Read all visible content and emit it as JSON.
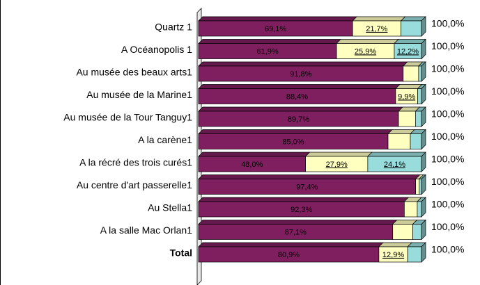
{
  "chart_data": {
    "type": "stacked-bar-3d",
    "categories": [
      "Quartz 1",
      "A Océanopolis 1",
      "Au musée des beaux arts1",
      "Au musée de la Marine1",
      "Au musée de la Tour Tanguy1",
      "A la carène1",
      "A la récré des trois curés1",
      "Au centre d'art passerelle1",
      "Au Stella1",
      "A la salle Mac Orlan1",
      "Total"
    ],
    "xlim": [
      0,
      100
    ],
    "series": [
      {
        "color": "#7f1f5f",
        "values": [
          69.1,
          61.9,
          91.8,
          88.4,
          89.7,
          85.0,
          48.0,
          97.4,
          92.3,
          87.1,
          80.9
        ],
        "value_labels": [
          "69,1%",
          "61,9%",
          "91,8%",
          "88,4%",
          "89,7%",
          "85,0%",
          "48,0%",
          "97,4%",
          "92,3%",
          "87,1%",
          "80,9%"
        ]
      },
      {
        "color": "#ffffc0",
        "values": [
          21.7,
          25.9,
          6.9,
          9.9,
          7.6,
          10.0,
          27.9,
          1.6,
          5.8,
          9.0,
          12.9
        ],
        "value_labels": [
          "21,7%",
          "25,9%",
          null,
          "9,9%",
          null,
          null,
          "27,9%",
          null,
          null,
          null,
          "12,9%"
        ]
      },
      {
        "color": "#99dcdc",
        "values": [
          9.2,
          12.2,
          1.3,
          1.7,
          2.7,
          5.0,
          24.1,
          1.0,
          1.9,
          3.9,
          6.2
        ],
        "value_labels": [
          null,
          "12,2%",
          null,
          null,
          null,
          null,
          "24,1%",
          null,
          null,
          null,
          null
        ]
      }
    ],
    "totals": [
      100,
      100,
      100,
      100,
      100,
      100,
      100,
      100,
      100,
      100,
      100
    ],
    "total_labels": [
      "100,0%",
      "100,0%",
      "100,0%",
      "100,0%",
      "100,0%",
      "100,0%",
      "100,0%",
      "100,0%",
      "100,0%",
      "100,0%",
      "100,0%"
    ]
  }
}
